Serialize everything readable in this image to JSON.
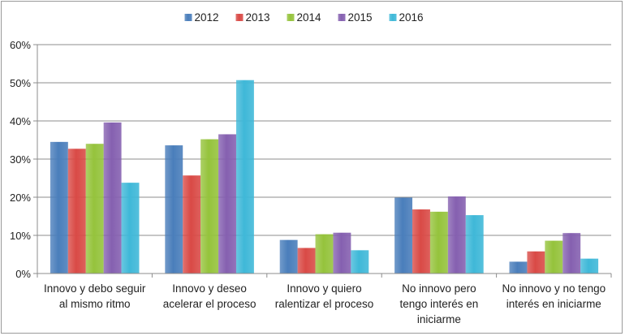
{
  "chart_data": {
    "type": "bar",
    "categories": [
      [
        "Innovo y debo seguir",
        "al mismo ritmo"
      ],
      [
        "Innovo y deseo",
        "acelerar el proceso"
      ],
      [
        "Innovo y quiero",
        "ralentizar el proceso"
      ],
      [
        "No innovo pero",
        "tengo interés en",
        "iniciarme"
      ],
      [
        "No innovo y no tengo",
        "interés en iniciarme"
      ]
    ],
    "series": [
      {
        "name": "2012",
        "color": "#4a7ebb",
        "values": [
          34.5,
          33.6,
          8.8,
          19.9,
          3.1
        ]
      },
      {
        "name": "2013",
        "color": "#d94a46",
        "values": [
          32.7,
          25.7,
          6.7,
          16.8,
          5.8
        ]
      },
      {
        "name": "2014",
        "color": "#95c33c",
        "values": [
          34.0,
          35.2,
          10.3,
          16.2,
          8.6
        ]
      },
      {
        "name": "2015",
        "color": "#8560b0",
        "values": [
          39.6,
          36.5,
          10.7,
          20.2,
          10.6
        ]
      },
      {
        "name": "2016",
        "color": "#3fb8d8",
        "values": [
          23.8,
          50.7,
          6.1,
          15.3,
          3.9
        ]
      }
    ],
    "ylim": [
      0,
      60
    ],
    "yticks": [
      "0%",
      "10%",
      "20%",
      "30%",
      "40%",
      "50%",
      "60%"
    ],
    "grid": true,
    "legend_position": "top"
  }
}
